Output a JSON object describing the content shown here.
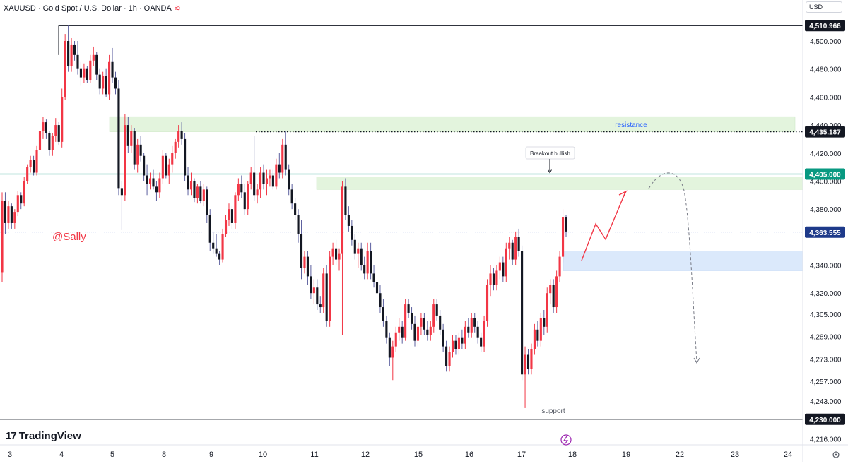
{
  "header": {
    "title": "XAUUSD · Gold Spot / U.S. Dollar · 1h · OANDA",
    "currency": "USD"
  },
  "watermark": "@Sally",
  "brand": {
    "name": "TradingView",
    "logo_icon": "tradingview-logo-icon"
  },
  "colors": {
    "up": "#f23645",
    "down": "#131722",
    "resistance_zone": "#e3f4dd",
    "support_zone": "#dbe9fb",
    "teal_line": "#089981",
    "accent": "#2962ff"
  },
  "chart_data": {
    "type": "candlestick",
    "title": "XAUUSD · Gold Spot / U.S. Dollar · 1h · OANDA",
    "ylim": [
      4210,
      4520
    ],
    "yticks": [
      "4,500.000",
      "4,480.000",
      "4,460.000",
      "4,440.000",
      "4,420.000",
      "4,400.000",
      "4,380.000",
      "4,340.000",
      "4,320.000",
      "4,305.000",
      "4,289.000",
      "4,273.000",
      "4,257.000",
      "4,243.000",
      "4,216.000"
    ],
    "price_labels": [
      {
        "label": "4,510.966",
        "value": 4510.966,
        "style": "dark"
      },
      {
        "label": "4,435.187",
        "value": 4435.187,
        "style": "dark"
      },
      {
        "label": "4,405.000",
        "value": 4405.0,
        "style": "teal"
      },
      {
        "label": "4,363.555",
        "value": 4363.555,
        "style": "blue"
      },
      {
        "label": "4,230.000",
        "value": 4230.0,
        "style": "dark"
      }
    ],
    "x_labels": [
      "3",
      "4",
      "5",
      "8",
      "9",
      "10",
      "11",
      "12",
      "15",
      "16",
      "17",
      "18",
      "19",
      "22",
      "23",
      "24"
    ],
    "annotations": {
      "resistance": "resistance",
      "breakout": "Breakout bullish",
      "support": "support"
    },
    "candles": [
      {
        "o": 4335,
        "h": 4392,
        "l": 4328,
        "c": 4386
      },
      {
        "o": 4386,
        "h": 4392,
        "l": 4362,
        "c": 4370
      },
      {
        "o": 4370,
        "h": 4386,
        "l": 4366,
        "c": 4382
      },
      {
        "o": 4382,
        "h": 4384,
        "l": 4366,
        "c": 4370
      },
      {
        "o": 4370,
        "h": 4380,
        "l": 4366,
        "c": 4378
      },
      {
        "o": 4378,
        "h": 4393,
        "l": 4375,
        "c": 4390
      },
      {
        "o": 4390,
        "h": 4392,
        "l": 4380,
        "c": 4384
      },
      {
        "o": 4384,
        "h": 4403,
        "l": 4382,
        "c": 4400
      },
      {
        "o": 4400,
        "h": 4412,
        "l": 4398,
        "c": 4410
      },
      {
        "o": 4410,
        "h": 4418,
        "l": 4406,
        "c": 4415
      },
      {
        "o": 4415,
        "h": 4418,
        "l": 4404,
        "c": 4406
      },
      {
        "o": 4406,
        "h": 4425,
        "l": 4404,
        "c": 4422
      },
      {
        "o": 4422,
        "h": 4440,
        "l": 4418,
        "c": 4436
      },
      {
        "o": 4436,
        "h": 4446,
        "l": 4430,
        "c": 4442
      },
      {
        "o": 4442,
        "h": 4444,
        "l": 4430,
        "c": 4434
      },
      {
        "o": 4434,
        "h": 4436,
        "l": 4418,
        "c": 4422
      },
      {
        "o": 4422,
        "h": 4434,
        "l": 4418,
        "c": 4432
      },
      {
        "o": 4432,
        "h": 4445,
        "l": 4428,
        "c": 4440
      },
      {
        "o": 4440,
        "h": 4442,
        "l": 4426,
        "c": 4428
      },
      {
        "o": 4428,
        "h": 4466,
        "l": 4424,
        "c": 4460
      },
      {
        "o": 4460,
        "h": 4505,
        "l": 4458,
        "c": 4500
      },
      {
        "o": 4500,
        "h": 4511,
        "l": 4478,
        "c": 4482
      },
      {
        "o": 4482,
        "h": 4502,
        "l": 4478,
        "c": 4497
      },
      {
        "o": 4497,
        "h": 4500,
        "l": 4486,
        "c": 4490
      },
      {
        "o": 4490,
        "h": 4500,
        "l": 4476,
        "c": 4480
      },
      {
        "o": 4480,
        "h": 4485,
        "l": 4468,
        "c": 4474
      },
      {
        "o": 4474,
        "h": 4484,
        "l": 4470,
        "c": 4480
      },
      {
        "o": 4480,
        "h": 4482,
        "l": 4470,
        "c": 4472
      },
      {
        "o": 4472,
        "h": 4490,
        "l": 4470,
        "c": 4486
      },
      {
        "o": 4486,
        "h": 4496,
        "l": 4482,
        "c": 4490
      },
      {
        "o": 4490,
        "h": 4492,
        "l": 4472,
        "c": 4476
      },
      {
        "o": 4476,
        "h": 4480,
        "l": 4462,
        "c": 4466
      },
      {
        "o": 4466,
        "h": 4478,
        "l": 4462,
        "c": 4475
      },
      {
        "o": 4475,
        "h": 4480,
        "l": 4460,
        "c": 4462
      },
      {
        "o": 4462,
        "h": 4490,
        "l": 4458,
        "c": 4485
      },
      {
        "o": 4485,
        "h": 4495,
        "l": 4470,
        "c": 4474
      },
      {
        "o": 4474,
        "h": 4478,
        "l": 4462,
        "c": 4466
      },
      {
        "o": 4466,
        "h": 4472,
        "l": 4390,
        "c": 4395
      },
      {
        "o": 4395,
        "h": 4400,
        "l": 4365,
        "c": 4390
      },
      {
        "o": 4390,
        "h": 4448,
        "l": 4386,
        "c": 4440
      },
      {
        "o": 4440,
        "h": 4446,
        "l": 4420,
        "c": 4425
      },
      {
        "o": 4425,
        "h": 4440,
        "l": 4420,
        "c": 4436
      },
      {
        "o": 4436,
        "h": 4438,
        "l": 4408,
        "c": 4412
      },
      {
        "o": 4412,
        "h": 4430,
        "l": 4406,
        "c": 4426
      },
      {
        "o": 4426,
        "h": 4432,
        "l": 4414,
        "c": 4418
      },
      {
        "o": 4418,
        "h": 4420,
        "l": 4400,
        "c": 4404
      },
      {
        "o": 4404,
        "h": 4412,
        "l": 4390,
        "c": 4398
      },
      {
        "o": 4398,
        "h": 4406,
        "l": 4394,
        "c": 4402
      },
      {
        "o": 4402,
        "h": 4408,
        "l": 4394,
        "c": 4396
      },
      {
        "o": 4396,
        "h": 4400,
        "l": 4386,
        "c": 4392
      },
      {
        "o": 4392,
        "h": 4406,
        "l": 4388,
        "c": 4402
      },
      {
        "o": 4402,
        "h": 4422,
        "l": 4398,
        "c": 4418
      },
      {
        "o": 4418,
        "h": 4420,
        "l": 4402,
        "c": 4404
      },
      {
        "o": 4404,
        "h": 4416,
        "l": 4398,
        "c": 4412
      },
      {
        "o": 4412,
        "h": 4425,
        "l": 4406,
        "c": 4420
      },
      {
        "o": 4420,
        "h": 4430,
        "l": 4416,
        "c": 4428
      },
      {
        "o": 4428,
        "h": 4440,
        "l": 4424,
        "c": 4436
      },
      {
        "o": 4436,
        "h": 4442,
        "l": 4426,
        "c": 4430
      },
      {
        "o": 4430,
        "h": 4434,
        "l": 4400,
        "c": 4404
      },
      {
        "o": 4404,
        "h": 4410,
        "l": 4390,
        "c": 4394
      },
      {
        "o": 4394,
        "h": 4406,
        "l": 4390,
        "c": 4400
      },
      {
        "o": 4400,
        "h": 4402,
        "l": 4385,
        "c": 4388
      },
      {
        "o": 4388,
        "h": 4398,
        "l": 4384,
        "c": 4396
      },
      {
        "o": 4396,
        "h": 4400,
        "l": 4384,
        "c": 4386
      },
      {
        "o": 4386,
        "h": 4398,
        "l": 4382,
        "c": 4394
      },
      {
        "o": 4394,
        "h": 4396,
        "l": 4370,
        "c": 4376
      },
      {
        "o": 4376,
        "h": 4380,
        "l": 4350,
        "c": 4356
      },
      {
        "o": 4356,
        "h": 4364,
        "l": 4348,
        "c": 4352
      },
      {
        "o": 4352,
        "h": 4362,
        "l": 4346,
        "c": 4348
      },
      {
        "o": 4348,
        "h": 4350,
        "l": 4340,
        "c": 4344
      },
      {
        "o": 4344,
        "h": 4366,
        "l": 4342,
        "c": 4362
      },
      {
        "o": 4362,
        "h": 4376,
        "l": 4360,
        "c": 4372
      },
      {
        "o": 4372,
        "h": 4384,
        "l": 4368,
        "c": 4380
      },
      {
        "o": 4380,
        "h": 4382,
        "l": 4366,
        "c": 4370
      },
      {
        "o": 4370,
        "h": 4392,
        "l": 4366,
        "c": 4390
      },
      {
        "o": 4390,
        "h": 4402,
        "l": 4386,
        "c": 4398
      },
      {
        "o": 4398,
        "h": 4404,
        "l": 4388,
        "c": 4392
      },
      {
        "o": 4392,
        "h": 4398,
        "l": 4376,
        "c": 4380
      },
      {
        "o": 4380,
        "h": 4400,
        "l": 4376,
        "c": 4398
      },
      {
        "o": 4398,
        "h": 4410,
        "l": 4394,
        "c": 4406
      },
      {
        "o": 4406,
        "h": 4432,
        "l": 4386,
        "c": 4390
      },
      {
        "o": 4390,
        "h": 4398,
        "l": 4384,
        "c": 4394
      },
      {
        "o": 4394,
        "h": 4410,
        "l": 4388,
        "c": 4406
      },
      {
        "o": 4406,
        "h": 4412,
        "l": 4394,
        "c": 4398
      },
      {
        "o": 4398,
        "h": 4408,
        "l": 4390,
        "c": 4402
      },
      {
        "o": 4402,
        "h": 4408,
        "l": 4396,
        "c": 4404
      },
      {
        "o": 4404,
        "h": 4408,
        "l": 4394,
        "c": 4396
      },
      {
        "o": 4396,
        "h": 4416,
        "l": 4394,
        "c": 4412
      },
      {
        "o": 4412,
        "h": 4420,
        "l": 4402,
        "c": 4406
      },
      {
        "o": 4406,
        "h": 4430,
        "l": 4402,
        "c": 4426
      },
      {
        "o": 4426,
        "h": 4436,
        "l": 4404,
        "c": 4408
      },
      {
        "o": 4408,
        "h": 4412,
        "l": 4390,
        "c": 4394
      },
      {
        "o": 4394,
        "h": 4398,
        "l": 4380,
        "c": 4384
      },
      {
        "o": 4384,
        "h": 4388,
        "l": 4372,
        "c": 4376
      },
      {
        "o": 4376,
        "h": 4380,
        "l": 4356,
        "c": 4362
      },
      {
        "o": 4362,
        "h": 4372,
        "l": 4330,
        "c": 4338
      },
      {
        "o": 4338,
        "h": 4350,
        "l": 4334,
        "c": 4346
      },
      {
        "o": 4346,
        "h": 4350,
        "l": 4326,
        "c": 4332
      },
      {
        "o": 4332,
        "h": 4340,
        "l": 4316,
        "c": 4320
      },
      {
        "o": 4320,
        "h": 4330,
        "l": 4312,
        "c": 4324
      },
      {
        "o": 4324,
        "h": 4330,
        "l": 4308,
        "c": 4312
      },
      {
        "o": 4312,
        "h": 4318,
        "l": 4306,
        "c": 4310
      },
      {
        "o": 4310,
        "h": 4338,
        "l": 4306,
        "c": 4334
      },
      {
        "o": 4334,
        "h": 4340,
        "l": 4296,
        "c": 4300
      },
      {
        "o": 4300,
        "h": 4350,
        "l": 4296,
        "c": 4346
      },
      {
        "o": 4346,
        "h": 4356,
        "l": 4340,
        "c": 4352
      },
      {
        "o": 4352,
        "h": 4358,
        "l": 4340,
        "c": 4344
      },
      {
        "o": 4344,
        "h": 4352,
        "l": 4336,
        "c": 4348
      },
      {
        "o": 4348,
        "h": 4400,
        "l": 4290,
        "c": 4396
      },
      {
        "o": 4396,
        "h": 4402,
        "l": 4372,
        "c": 4376
      },
      {
        "o": 4376,
        "h": 4382,
        "l": 4364,
        "c": 4368
      },
      {
        "o": 4368,
        "h": 4372,
        "l": 4354,
        "c": 4358
      },
      {
        "o": 4358,
        "h": 4362,
        "l": 4344,
        "c": 4348
      },
      {
        "o": 4348,
        "h": 4356,
        "l": 4338,
        "c": 4352
      },
      {
        "o": 4352,
        "h": 4356,
        "l": 4336,
        "c": 4340
      },
      {
        "o": 4340,
        "h": 4346,
        "l": 4330,
        "c": 4334
      },
      {
        "o": 4334,
        "h": 4356,
        "l": 4330,
        "c": 4350
      },
      {
        "o": 4350,
        "h": 4356,
        "l": 4330,
        "c": 4334
      },
      {
        "o": 4334,
        "h": 4340,
        "l": 4324,
        "c": 4328
      },
      {
        "o": 4328,
        "h": 4332,
        "l": 4316,
        "c": 4320
      },
      {
        "o": 4320,
        "h": 4326,
        "l": 4306,
        "c": 4310
      },
      {
        "o": 4310,
        "h": 4316,
        "l": 4296,
        "c": 4300
      },
      {
        "o": 4300,
        "h": 4304,
        "l": 4284,
        "c": 4288
      },
      {
        "o": 4288,
        "h": 4292,
        "l": 4268,
        "c": 4274
      },
      {
        "o": 4274,
        "h": 4286,
        "l": 4258,
        "c": 4282
      },
      {
        "o": 4282,
        "h": 4296,
        "l": 4278,
        "c": 4292
      },
      {
        "o": 4292,
        "h": 4302,
        "l": 4286,
        "c": 4296
      },
      {
        "o": 4296,
        "h": 4300,
        "l": 4284,
        "c": 4288
      },
      {
        "o": 4288,
        "h": 4316,
        "l": 4286,
        "c": 4312
      },
      {
        "o": 4312,
        "h": 4316,
        "l": 4302,
        "c": 4306
      },
      {
        "o": 4306,
        "h": 4310,
        "l": 4294,
        "c": 4298
      },
      {
        "o": 4298,
        "h": 4304,
        "l": 4282,
        "c": 4286
      },
      {
        "o": 4286,
        "h": 4300,
        "l": 4282,
        "c": 4296
      },
      {
        "o": 4296,
        "h": 4306,
        "l": 4290,
        "c": 4302
      },
      {
        "o": 4302,
        "h": 4306,
        "l": 4290,
        "c": 4294
      },
      {
        "o": 4294,
        "h": 4300,
        "l": 4286,
        "c": 4290
      },
      {
        "o": 4290,
        "h": 4300,
        "l": 4286,
        "c": 4296
      },
      {
        "o": 4296,
        "h": 4316,
        "l": 4292,
        "c": 4312
      },
      {
        "o": 4312,
        "h": 4316,
        "l": 4300,
        "c": 4304
      },
      {
        "o": 4304,
        "h": 4308,
        "l": 4290,
        "c": 4294
      },
      {
        "o": 4294,
        "h": 4298,
        "l": 4278,
        "c": 4282
      },
      {
        "o": 4282,
        "h": 4286,
        "l": 4264,
        "c": 4268
      },
      {
        "o": 4268,
        "h": 4282,
        "l": 4264,
        "c": 4278
      },
      {
        "o": 4278,
        "h": 4290,
        "l": 4274,
        "c": 4286
      },
      {
        "o": 4286,
        "h": 4290,
        "l": 4276,
        "c": 4280
      },
      {
        "o": 4280,
        "h": 4292,
        "l": 4276,
        "c": 4288
      },
      {
        "o": 4288,
        "h": 4294,
        "l": 4280,
        "c": 4284
      },
      {
        "o": 4284,
        "h": 4300,
        "l": 4280,
        "c": 4296
      },
      {
        "o": 4296,
        "h": 4302,
        "l": 4288,
        "c": 4292
      },
      {
        "o": 4292,
        "h": 4306,
        "l": 4288,
        "c": 4302
      },
      {
        "o": 4302,
        "h": 4306,
        "l": 4292,
        "c": 4296
      },
      {
        "o": 4296,
        "h": 4300,
        "l": 4284,
        "c": 4288
      },
      {
        "o": 4288,
        "h": 4292,
        "l": 4278,
        "c": 4282
      },
      {
        "o": 4282,
        "h": 4304,
        "l": 4278,
        "c": 4300
      },
      {
        "o": 4300,
        "h": 4330,
        "l": 4296,
        "c": 4326
      },
      {
        "o": 4326,
        "h": 4340,
        "l": 4318,
        "c": 4334
      },
      {
        "o": 4334,
        "h": 4338,
        "l": 4322,
        "c": 4326
      },
      {
        "o": 4326,
        "h": 4340,
        "l": 4322,
        "c": 4336
      },
      {
        "o": 4336,
        "h": 4346,
        "l": 4330,
        "c": 4342
      },
      {
        "o": 4342,
        "h": 4346,
        "l": 4328,
        "c": 4332
      },
      {
        "o": 4332,
        "h": 4356,
        "l": 4328,
        "c": 4352
      },
      {
        "o": 4352,
        "h": 4360,
        "l": 4344,
        "c": 4356
      },
      {
        "o": 4356,
        "h": 4358,
        "l": 4340,
        "c": 4344
      },
      {
        "o": 4344,
        "h": 4364,
        "l": 4340,
        "c": 4360
      },
      {
        "o": 4360,
        "h": 4366,
        "l": 4346,
        "c": 4350
      },
      {
        "o": 4350,
        "h": 4354,
        "l": 4258,
        "c": 4262
      },
      {
        "o": 4262,
        "h": 4282,
        "l": 4238,
        "c": 4276
      },
      {
        "o": 4276,
        "h": 4280,
        "l": 4262,
        "c": 4266
      },
      {
        "o": 4266,
        "h": 4284,
        "l": 4262,
        "c": 4280
      },
      {
        "o": 4280,
        "h": 4298,
        "l": 4276,
        "c": 4294
      },
      {
        "o": 4294,
        "h": 4300,
        "l": 4282,
        "c": 4286
      },
      {
        "o": 4286,
        "h": 4306,
        "l": 4282,
        "c": 4302
      },
      {
        "o": 4302,
        "h": 4308,
        "l": 4290,
        "c": 4296
      },
      {
        "o": 4296,
        "h": 4324,
        "l": 4292,
        "c": 4320
      },
      {
        "o": 4320,
        "h": 4330,
        "l": 4312,
        "c": 4326
      },
      {
        "o": 4326,
        "h": 4330,
        "l": 4306,
        "c": 4310
      },
      {
        "o": 4310,
        "h": 4336,
        "l": 4306,
        "c": 4332
      },
      {
        "o": 4332,
        "h": 4350,
        "l": 4328,
        "c": 4346
      },
      {
        "o": 4346,
        "h": 4380,
        "l": 4342,
        "c": 4374
      },
      {
        "o": 4374,
        "h": 4376,
        "l": 4360,
        "c": 4364
      }
    ]
  }
}
